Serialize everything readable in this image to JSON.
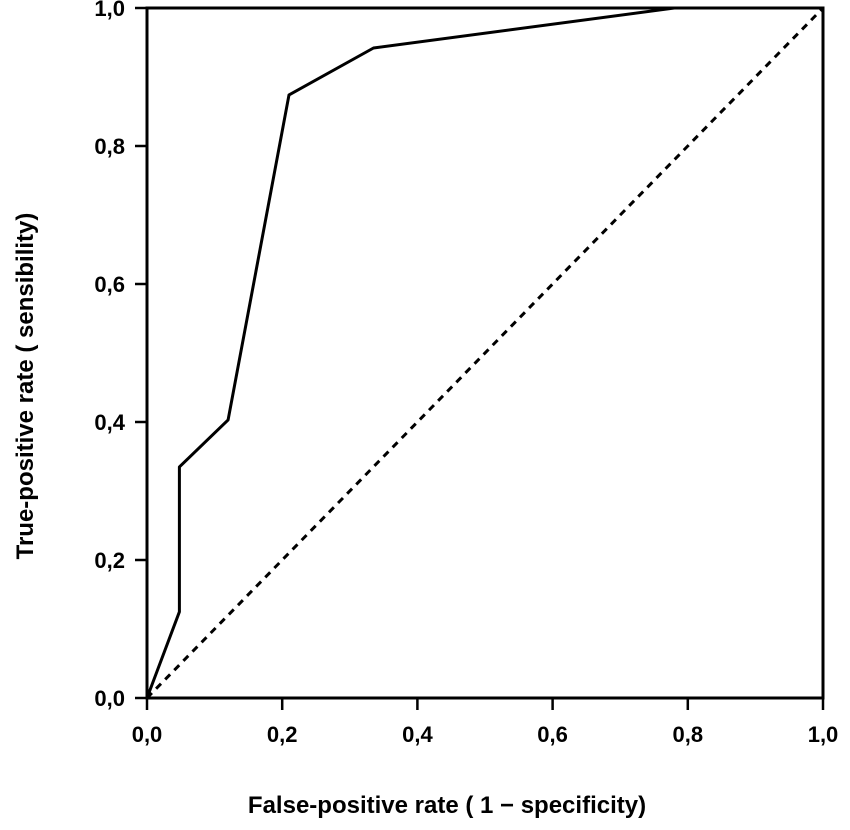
{
  "chart_data": {
    "type": "line",
    "title": "",
    "xlabel": "False-positive rate ( 1 − specificity)",
    "ylabel": "True-positive rate ( sensibility)",
    "xlim": [
      0,
      1
    ],
    "ylim": [
      0,
      1
    ],
    "x_ticks": [
      0,
      0.2,
      0.4,
      0.6,
      0.8,
      1.0
    ],
    "x_tick_labels": [
      "0,0",
      "0,2",
      "0,4",
      "0,6",
      "0,8",
      "1,0"
    ],
    "y_ticks": [
      0,
      0.2,
      0.4,
      0.6,
      0.8,
      1.0
    ],
    "y_tick_labels": [
      "0,0",
      "0,2",
      "0,4",
      "0,6",
      "0,8",
      "1,0"
    ],
    "grid": false,
    "legend": "none",
    "series": [
      {
        "style": "solid",
        "color": "#000000",
        "points": [
          [
            0.0,
            0.0
          ],
          [
            0.048,
            0.125
          ],
          [
            0.048,
            0.335
          ],
          [
            0.12,
            0.403
          ],
          [
            0.21,
            0.874
          ],
          [
            0.335,
            0.942
          ],
          [
            0.78,
            1.0
          ],
          [
            1.0,
            1.0
          ]
        ]
      },
      {
        "style": "dashed",
        "color": "#000000",
        "points": [
          [
            0.0,
            0.0
          ],
          [
            1.0,
            1.0
          ]
        ]
      }
    ]
  }
}
